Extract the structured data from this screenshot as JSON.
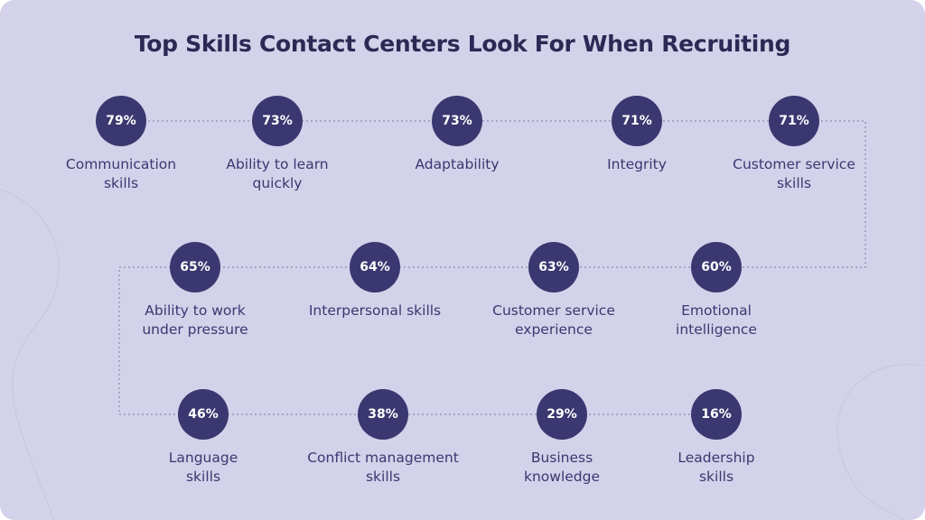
{
  "title": "Top Skills Contact Centers Look For When Recruiting",
  "colors": {
    "background": "#d4d2ea",
    "circle": "#3b3770",
    "text": "#3b3770",
    "title": "#2b2a55",
    "connector": "#8c89b0"
  },
  "skills": [
    {
      "pct": "79%",
      "label": [
        "Communication",
        "skills"
      ]
    },
    {
      "pct": "73%",
      "label": [
        "Ability to learn",
        "quickly"
      ]
    },
    {
      "pct": "73%",
      "label": [
        "Adaptability"
      ]
    },
    {
      "pct": "71%",
      "label": [
        "Integrity"
      ]
    },
    {
      "pct": "71%",
      "label": [
        "Customer service",
        "skills"
      ]
    },
    {
      "pct": "65%",
      "label": [
        "Ability to work",
        "under pressure"
      ]
    },
    {
      "pct": "64%",
      "label": [
        "Interpersonal skills"
      ]
    },
    {
      "pct": "63%",
      "label": [
        "Customer service",
        "experience"
      ]
    },
    {
      "pct": "60%",
      "label": [
        "Emotional",
        "intelligence"
      ]
    },
    {
      "pct": "46%",
      "label": [
        "Language",
        "skills"
      ]
    },
    {
      "pct": "38%",
      "label": [
        "Conflict management",
        "skills"
      ]
    },
    {
      "pct": "29%",
      "label": [
        "Business",
        "knowledge"
      ]
    },
    {
      "pct": "16%",
      "label": [
        "Leadership",
        "skills"
      ]
    }
  ]
}
